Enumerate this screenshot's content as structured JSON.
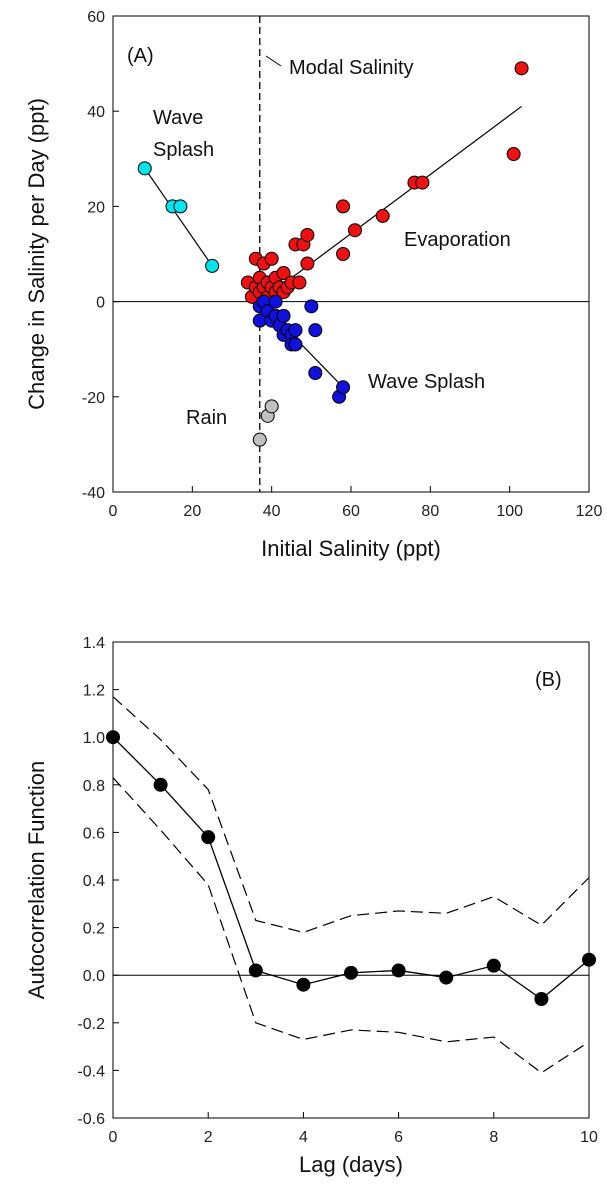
{
  "chart_data": [
    {
      "type": "scatter",
      "panel_label": "(A)",
      "xlabel": "Initial Salinity (ppt)",
      "ylabel": "Change in Salinity per Day (ppt)",
      "xlim": [
        0,
        120
      ],
      "ylim": [
        -40,
        60
      ],
      "xticks": [
        0,
        20,
        40,
        60,
        80,
        100,
        120
      ],
      "yticks": [
        -40,
        -20,
        0,
        20,
        40,
        60
      ],
      "modal_salinity": 37,
      "annotations": {
        "modal": "Modal Salinity",
        "wave_splash_top_1": "Wave",
        "wave_splash_top_2": "Splash",
        "evaporation": "Evaporation",
        "wave_splash_bottom": "Wave Splash",
        "rain": "Rain"
      },
      "series": [
        {
          "color": "#00e5ee",
          "points": [
            [
              8,
              28
            ],
            [
              15,
              20
            ],
            [
              17,
              20
            ],
            [
              25,
              7.5
            ]
          ],
          "fit": [
            [
              8,
              28
            ],
            [
              25,
              7.5
            ]
          ]
        },
        {
          "color": "#ee1111",
          "points": [
            [
              34,
              4
            ],
            [
              35,
              1
            ],
            [
              36,
              3
            ],
            [
              36,
              9
            ],
            [
              37,
              5
            ],
            [
              37,
              2
            ],
            [
              38,
              3
            ],
            [
              38,
              8
            ],
            [
              39,
              4
            ],
            [
              39,
              1
            ],
            [
              40,
              9
            ],
            [
              40,
              3
            ],
            [
              41,
              5
            ],
            [
              41,
              2
            ],
            [
              42,
              3
            ],
            [
              43,
              6
            ],
            [
              43,
              2
            ],
            [
              44,
              3
            ],
            [
              45,
              4
            ],
            [
              46,
              12
            ],
            [
              47,
              4
            ],
            [
              48,
              12
            ],
            [
              49,
              8
            ],
            [
              49,
              14
            ],
            [
              58,
              20
            ],
            [
              58,
              10
            ],
            [
              61,
              15
            ],
            [
              68,
              18
            ],
            [
              76,
              25
            ],
            [
              78,
              25
            ],
            [
              101,
              31
            ],
            [
              103,
              49
            ]
          ],
          "fit": [
            [
              37,
              0
            ],
            [
              103,
              41
            ]
          ]
        },
        {
          "color": "#1111dd",
          "points": [
            [
              37,
              -1
            ],
            [
              37,
              -4
            ],
            [
              38,
              0
            ],
            [
              39,
              -2
            ],
            [
              40,
              -4
            ],
            [
              41,
              0
            ],
            [
              41,
              -3
            ],
            [
              42,
              -5
            ],
            [
              43,
              -3
            ],
            [
              43,
              -7
            ],
            [
              44,
              -6
            ],
            [
              45,
              -7
            ],
            [
              45,
              -9
            ],
            [
              46,
              -9
            ],
            [
              46,
              -6
            ],
            [
              50,
              -1
            ],
            [
              51,
              -6
            ],
            [
              51,
              -15
            ],
            [
              57,
              -20
            ],
            [
              58,
              -18
            ]
          ],
          "fit": [
            [
              37,
              0
            ],
            [
              58,
              -18
            ]
          ]
        },
        {
          "color": "#c0c0c0",
          "points": [
            [
              37,
              -29
            ],
            [
              39,
              -24
            ],
            [
              40,
              -22
            ]
          ]
        }
      ]
    },
    {
      "type": "line",
      "panel_label": "(B)",
      "xlabel": "Lag (days)",
      "ylabel": "Autocorrelation Function",
      "xlim": [
        0,
        10
      ],
      "ylim": [
        -0.6,
        1.4
      ],
      "xticks": [
        0,
        2,
        4,
        6,
        8,
        10
      ],
      "yticks": [
        -0.6,
        -0.4,
        -0.2,
        0.0,
        0.2,
        0.4,
        0.6,
        0.8,
        1.0,
        1.2,
        1.4
      ],
      "x": [
        0,
        1,
        2,
        3,
        4,
        5,
        6,
        7,
        8,
        9,
        10
      ],
      "acf": [
        1.0,
        0.8,
        0.58,
        0.02,
        -0.04,
        0.01,
        0.02,
        -0.01,
        0.04,
        -0.1,
        0.065
      ],
      "upper_band": [
        1.17,
        0.99,
        0.78,
        0.23,
        0.18,
        0.25,
        0.27,
        0.26,
        0.33,
        0.21,
        0.41
      ],
      "lower_band": [
        0.83,
        0.61,
        0.38,
        -0.2,
        -0.27,
        -0.23,
        -0.24,
        -0.28,
        -0.26,
        -0.41,
        -0.28
      ]
    }
  ]
}
